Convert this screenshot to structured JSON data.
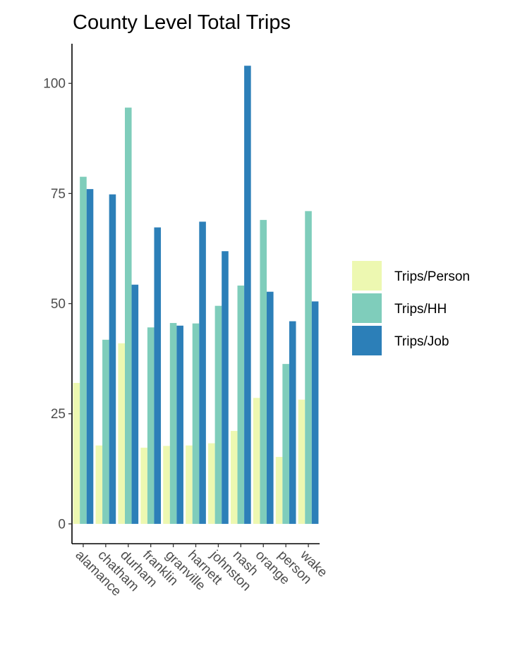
{
  "chart_data": {
    "type": "bar",
    "title": "County Level Total Trips",
    "xlabel": "",
    "ylabel": "",
    "ylim": [
      -4.5,
      109
    ],
    "yticks": [
      0,
      25,
      50,
      75,
      100
    ],
    "categories": [
      "alamance",
      "chatham",
      "durham",
      "franklin",
      "granville",
      "harnett",
      "johnston",
      "nash",
      "orange",
      "person",
      "wake"
    ],
    "series": [
      {
        "name": "Trips/Person",
        "color": "#edf8b1",
        "values": [
          32,
          17.8,
          41,
          17.3,
          17.7,
          17.8,
          18.3,
          21.1,
          28.6,
          15.2,
          28.2
        ]
      },
      {
        "name": "Trips/HH",
        "color": "#7fcdbb",
        "values": [
          78.8,
          41.8,
          94.5,
          44.6,
          45.6,
          45.5,
          49.5,
          54.1,
          69,
          36.3,
          71
        ]
      },
      {
        "name": "Trips/Job",
        "color": "#2c7fb8",
        "values": [
          76,
          74.8,
          54.3,
          67.3,
          45,
          68.6,
          61.9,
          104,
          52.7,
          46,
          50.5
        ]
      }
    ],
    "legend_position": "right",
    "grid": false
  }
}
